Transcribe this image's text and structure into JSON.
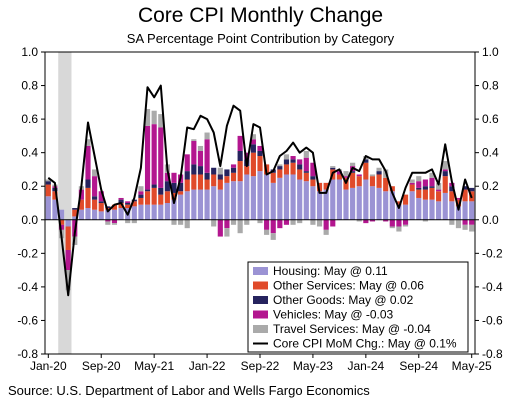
{
  "chart_data": {
    "type": "bar",
    "title": "Core CPI Monthly Change",
    "subtitle": "SA Percentage Point Contribution by Category",
    "source": "Source: U.S. Department of Labor and Wells Fargo Economics",
    "ylim": [
      -0.8,
      1.0
    ],
    "yticks": [
      "1.0",
      "0.8",
      "0.6",
      "0.4",
      "0.2",
      "0.0",
      "-0.2",
      "-0.4",
      "-0.6",
      "-0.8"
    ],
    "xtick_labels": [
      "Jan-20",
      "Sep-20",
      "May-21",
      "Jan-22",
      "Sep-22",
      "May-23",
      "Jan-24",
      "Sep-24",
      "May-25"
    ],
    "x": [
      "2020-01",
      "2020-02",
      "2020-03",
      "2020-04",
      "2020-05",
      "2020-06",
      "2020-07",
      "2020-08",
      "2020-09",
      "2020-10",
      "2020-11",
      "2020-12",
      "2021-01",
      "2021-02",
      "2021-03",
      "2021-04",
      "2021-05",
      "2021-06",
      "2021-07",
      "2021-08",
      "2021-09",
      "2021-10",
      "2021-11",
      "2021-12",
      "2022-01",
      "2022-02",
      "2022-03",
      "2022-04",
      "2022-05",
      "2022-06",
      "2022-07",
      "2022-08",
      "2022-09",
      "2022-10",
      "2022-11",
      "2022-12",
      "2023-01",
      "2023-02",
      "2023-03",
      "2023-04",
      "2023-05",
      "2023-06",
      "2023-07",
      "2023-08",
      "2023-09",
      "2023-10",
      "2023-11",
      "2023-12",
      "2024-01",
      "2024-02",
      "2024-03",
      "2024-04",
      "2024-05",
      "2024-06",
      "2024-07",
      "2024-08",
      "2024-09",
      "2024-10",
      "2024-11",
      "2024-12",
      "2025-01",
      "2025-02",
      "2025-03",
      "2025-04",
      "2025-05"
    ],
    "shaded_months": [
      "2020-03",
      "2020-04"
    ],
    "series": [
      {
        "name": "Housing: May @ 0.11",
        "color": "#9b93d4",
        "values": [
          0.14,
          0.12,
          0.06,
          -0.04,
          0.02,
          0.06,
          0.07,
          0.06,
          0.05,
          0.06,
          0.06,
          0.07,
          0.07,
          0.08,
          0.09,
          0.09,
          0.09,
          0.09,
          0.1,
          0.12,
          0.15,
          0.17,
          0.18,
          0.18,
          0.18,
          0.2,
          0.18,
          0.22,
          0.23,
          0.23,
          0.27,
          0.26,
          0.29,
          0.27,
          0.22,
          0.25,
          0.27,
          0.27,
          0.24,
          0.23,
          0.2,
          0.17,
          0.18,
          0.24,
          0.24,
          0.18,
          0.19,
          0.2,
          0.24,
          0.2,
          0.19,
          0.17,
          0.17,
          0.09,
          0.09,
          0.17,
          0.13,
          0.12,
          0.12,
          0.11,
          0.16,
          0.11,
          0.08,
          0.11,
          0.11
        ]
      },
      {
        "name": "Other Services: May @ 0.06",
        "color": "#e04a2a",
        "values": [
          0.07,
          0.05,
          -0.03,
          -0.14,
          0.04,
          0.06,
          0.12,
          0.06,
          0.05,
          0.01,
          0.03,
          0.03,
          0.02,
          0.03,
          0.04,
          0.08,
          0.1,
          0.06,
          0.07,
          0.04,
          0.02,
          0.07,
          0.09,
          0.09,
          0.06,
          0.07,
          0.06,
          0.04,
          0.05,
          0.12,
          0.05,
          0.14,
          0.09,
          0.06,
          0.06,
          0.05,
          0.06,
          0.07,
          0.06,
          0.05,
          0.04,
          0.05,
          0.04,
          0.06,
          0.03,
          0.07,
          0.09,
          0.06,
          0.1,
          0.06,
          0.08,
          0.08,
          0.03,
          0.02,
          0.06,
          0.04,
          0.05,
          0.06,
          0.07,
          0.06,
          0.1,
          0.06,
          0.04,
          0.07,
          0.06
        ]
      },
      {
        "name": "Other Goods: May @ 0.02",
        "color": "#26235e",
        "values": [
          0.02,
          0.02,
          0.0,
          0.0,
          0.01,
          0.0,
          0.05,
          0.02,
          0.01,
          0.01,
          0.0,
          0.02,
          0.01,
          0.01,
          0.02,
          0.01,
          0.02,
          0.04,
          0.06,
          0.06,
          0.05,
          0.05,
          0.06,
          0.05,
          0.04,
          0.04,
          0.03,
          0.04,
          0.03,
          0.06,
          0.04,
          0.05,
          0.03,
          0.0,
          0.02,
          0.02,
          0.03,
          0.02,
          0.03,
          0.01,
          0.02,
          0.0,
          0.0,
          0.01,
          0.0,
          0.0,
          0.01,
          0.0,
          0.02,
          0.0,
          0.02,
          0.0,
          0.0,
          0.0,
          0.0,
          0.0,
          0.01,
          0.02,
          0.01,
          0.0,
          0.03,
          0.03,
          0.0,
          0.02,
          0.02
        ]
      },
      {
        "name": "Vehicles: May @ -0.03",
        "color": "#b3168f",
        "values": [
          0.0,
          0.01,
          -0.03,
          -0.12,
          -0.1,
          0.06,
          0.2,
          0.12,
          0.06,
          -0.01,
          -0.02,
          0.01,
          0.01,
          0.0,
          0.02,
          0.38,
          0.36,
          0.36,
          0.05,
          0.06,
          0.05,
          0.1,
          0.14,
          0.09,
          0.2,
          0.0,
          -0.1,
          -0.05,
          0.02,
          0.09,
          0.04,
          0.03,
          0.03,
          -0.06,
          -0.08,
          -0.05,
          -0.03,
          0.02,
          0.03,
          0.08,
          0.08,
          0.0,
          -0.06,
          -0.04,
          0.02,
          0.01,
          0.03,
          0.01,
          -0.02,
          -0.01,
          0.0,
          -0.01,
          -0.04,
          -0.04,
          -0.03,
          0.01,
          0.04,
          0.04,
          0.05,
          0.01,
          0.01,
          0.02,
          0.01,
          -0.03,
          -0.03
        ]
      },
      {
        "name": "Travel Services: May @ -0.04",
        "color": "#aaaaaa",
        "values": [
          0.01,
          0.01,
          -0.05,
          -0.12,
          -0.05,
          0.02,
          0.04,
          0.04,
          0.0,
          -0.02,
          -0.01,
          0.0,
          -0.02,
          -0.02,
          0.03,
          0.1,
          0.08,
          0.08,
          0.05,
          -0.03,
          -0.03,
          -0.05,
          0.01,
          0.03,
          0.04,
          -0.04,
          0.04,
          -0.05,
          -0.03,
          -0.08,
          -0.03,
          0.03,
          -0.02,
          -0.03,
          -0.04,
          0.01,
          0.03,
          -0.03,
          -0.02,
          0.04,
          -0.03,
          -0.04,
          -0.03,
          0.01,
          0.01,
          0.03,
          0.02,
          -0.01,
          0.02,
          0.01,
          0.02,
          0.05,
          -0.01,
          -0.03,
          -0.01,
          0.02,
          0.03,
          -0.01,
          0.03,
          0.04,
          0.05,
          -0.03,
          -0.05,
          -0.03,
          -0.04
        ]
      },
      {
        "name": "Core CPI MoM Chg.: May @ 0.1%",
        "type": "line",
        "color": "#000000",
        "values": [
          0.25,
          0.22,
          -0.1,
          -0.45,
          -0.08,
          0.2,
          0.58,
          0.38,
          0.18,
          0.05,
          0.09,
          0.1,
          0.03,
          0.13,
          0.31,
          0.79,
          0.73,
          0.8,
          0.3,
          0.1,
          0.25,
          0.55,
          0.54,
          0.62,
          0.6,
          0.52,
          0.32,
          0.56,
          0.68,
          0.65,
          0.32,
          0.57,
          0.55,
          0.27,
          0.29,
          0.38,
          0.41,
          0.46,
          0.4,
          0.43,
          0.4,
          0.16,
          0.16,
          0.28,
          0.3,
          0.22,
          0.31,
          0.29,
          0.38,
          0.36,
          0.36,
          0.29,
          0.16,
          0.07,
          0.19,
          0.28,
          0.28,
          0.28,
          0.3,
          0.21,
          0.45,
          0.23,
          0.06,
          0.24,
          0.13
        ]
      }
    ],
    "legend_position": "bottom-right",
    "grid": false
  }
}
